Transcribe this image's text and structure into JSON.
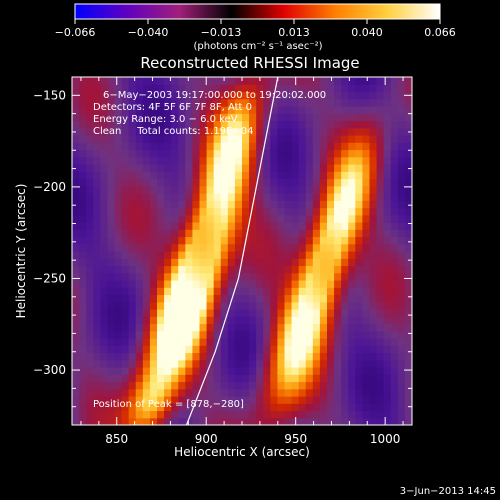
{
  "colorbar": {
    "ticks": [
      "−0.066",
      "−0.040",
      "−0.013",
      "0.013",
      "0.040",
      "0.066"
    ],
    "units": "(photons cm⁻² s⁻¹ asec⁻²)",
    "range": [
      -0.066,
      0.066
    ],
    "stops": [
      "#0000ff",
      "#6000c0",
      "#a0207a",
      "#000000",
      "#e00000",
      "#ff8000",
      "#ffd040",
      "#ffffff"
    ]
  },
  "chart_data": {
    "type": "heatmap",
    "title": "Reconstructed RHESSI Image",
    "xlabel": "Heliocentric X (arcsec)",
    "ylabel": "Heliocentric Y (arcsec)",
    "xlim": [
      825,
      1015
    ],
    "ylim": [
      -330,
      -140
    ],
    "x_ticks": [
      "850",
      "900",
      "950",
      "1000"
    ],
    "x_tick_values": [
      850,
      900,
      950,
      1000
    ],
    "y_ticks": [
      "−150",
      "−200",
      "−250",
      "−300"
    ],
    "y_tick_values": [
      -150,
      -200,
      -250,
      -300
    ],
    "annotations": [
      "6−May−2003 19:17:00.000 to 19:20:02.000",
      "Detectors: 4F 5F 6F 7F 8F, Att 0",
      "Energy Range: 3.0 − 6.0 keV",
      "Clean     Total counts: 1.19E+04"
    ],
    "peak_label": "Position of Peak = [878,−280]",
    "peak": [
      878,
      -280
    ],
    "limb_curve": [
      [
        889,
        -330
      ],
      [
        905,
        -290
      ],
      [
        918,
        -250
      ],
      [
        928,
        -200
      ],
      [
        936,
        -160
      ],
      [
        940,
        -140
      ]
    ],
    "sources": [
      {
        "x": 885,
        "y": -275,
        "sx": 10,
        "sy": 32,
        "amp": 1.0
      },
      {
        "x": 900,
        "y": -230,
        "sx": 10,
        "sy": 34,
        "amp": 0.9
      },
      {
        "x": 915,
        "y": -175,
        "sx": 9,
        "sy": 28,
        "amp": 0.7
      },
      {
        "x": 955,
        "y": -275,
        "sx": 10,
        "sy": 38,
        "amp": 0.95
      },
      {
        "x": 975,
        "y": -215,
        "sx": 9,
        "sy": 34,
        "amp": 0.8
      },
      {
        "x": 868,
        "y": -320,
        "sx": 9,
        "sy": 14,
        "amp": 0.6
      }
    ]
  },
  "footer": {
    "date": "3−Jun−2013 14:45"
  }
}
